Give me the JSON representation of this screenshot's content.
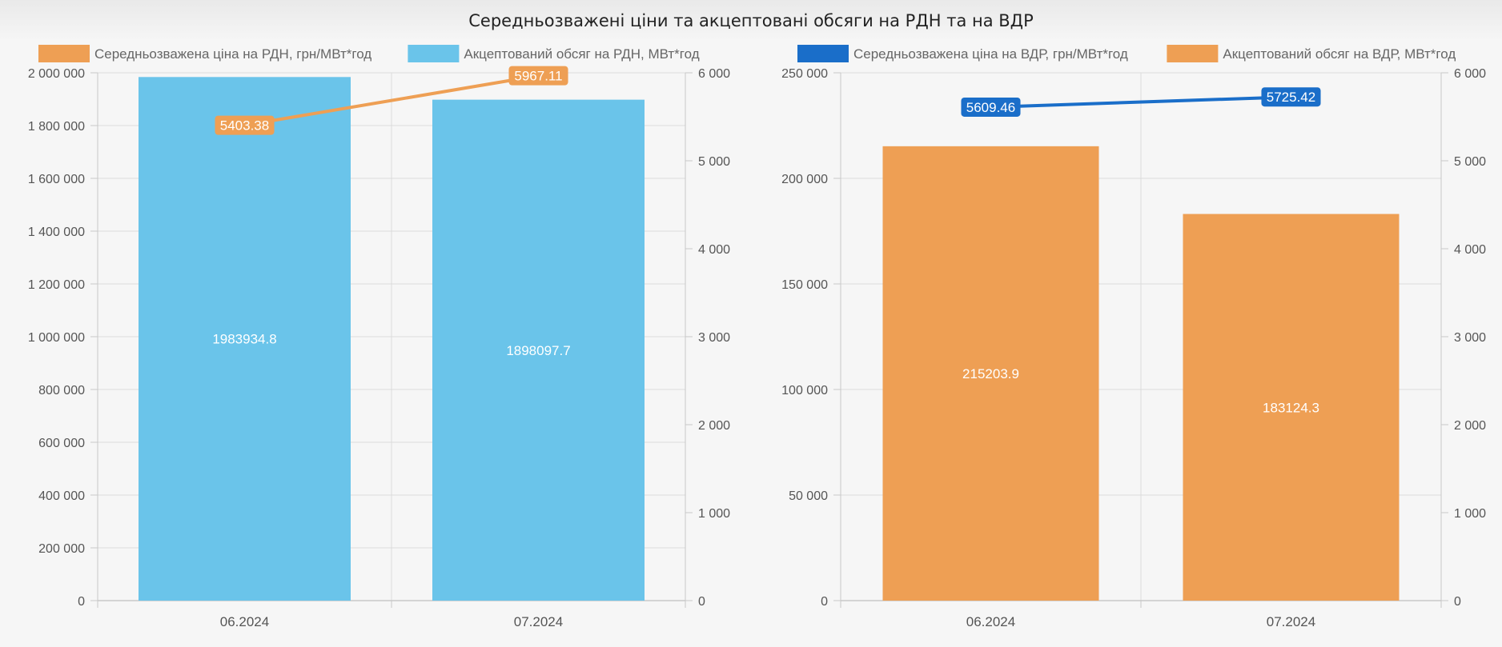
{
  "page": {
    "title": "Середньозважені ціни та акцептовані обсяги на РДН та на ВДР"
  },
  "chart_data": [
    {
      "type": "bar",
      "categories": [
        "06.2024",
        "07.2024"
      ],
      "series": [
        {
          "name": "Акцептований обсяг на РДН, МВт*год",
          "kind": "bar",
          "axis": "left",
          "color": "#6ac4ea",
          "values": [
            1983934.8,
            1898097.7
          ],
          "labels": [
            "1983934.8",
            "1898097.7"
          ]
        },
        {
          "name": "Середньозважена ціна на РДН, грн/МВт*год",
          "kind": "line",
          "axis": "right",
          "color": "#ee9f54",
          "values": [
            5403.38,
            5967.11
          ],
          "labels": [
            "5403.38",
            "5967.11"
          ]
        }
      ],
      "legend_order": [
        1,
        0
      ],
      "y_left": {
        "min": 0,
        "max": 2000000,
        "ticks": [
          0,
          200000,
          400000,
          600000,
          800000,
          1000000,
          1200000,
          1400000,
          1600000,
          1800000,
          2000000
        ],
        "tick_labels": [
          "0",
          "200 000",
          "400 000",
          "600 000",
          "800 000",
          "1 000 000",
          "1 200 000",
          "1 400 000",
          "1 600 000",
          "1 800 000",
          "2 000 000"
        ]
      },
      "y_right": {
        "min": 0,
        "max": 6000,
        "ticks": [
          0,
          1000,
          2000,
          3000,
          4000,
          5000,
          6000
        ],
        "tick_labels": [
          "0",
          "1 000",
          "2 000",
          "3 000",
          "4 000",
          "5 000",
          "6 000"
        ]
      },
      "legend": "top",
      "grid": true
    },
    {
      "type": "bar",
      "categories": [
        "06.2024",
        "07.2024"
      ],
      "series": [
        {
          "name": "Акцептований обсяг на ВДР, МВт*год",
          "kind": "bar",
          "axis": "left",
          "color": "#ee9f54",
          "values": [
            215203.9,
            183124.3
          ],
          "labels": [
            "215203.9",
            "183124.3"
          ]
        },
        {
          "name": "Середньозважена ціна на ВДР, грн/МВт*год",
          "kind": "line",
          "axis": "right",
          "color": "#1a6ec9",
          "values": [
            5609.46,
            5725.42
          ],
          "labels": [
            "5609.46",
            "5725.42"
          ]
        }
      ],
      "legend_order": [
        1,
        0
      ],
      "y_left": {
        "min": 0,
        "max": 250000,
        "ticks": [
          0,
          50000,
          100000,
          150000,
          200000,
          250000
        ],
        "tick_labels": [
          "0",
          "50 000",
          "100 000",
          "150 000",
          "200 000",
          "250 000"
        ]
      },
      "y_right": {
        "min": 0,
        "max": 6000,
        "ticks": [
          0,
          1000,
          2000,
          3000,
          4000,
          5000,
          6000
        ],
        "tick_labels": [
          "0",
          "1 000",
          "2 000",
          "3 000",
          "4 000",
          "5 000",
          "6 000"
        ]
      },
      "legend": "top",
      "grid": true
    }
  ]
}
